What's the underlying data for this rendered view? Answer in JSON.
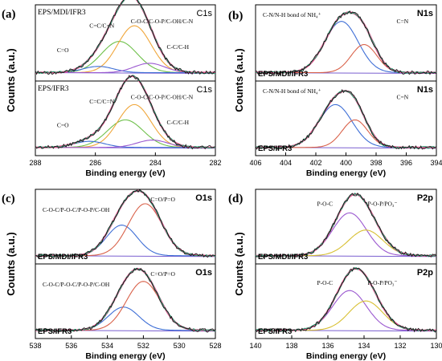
{
  "figure": {
    "colors": {
      "envelope": "#e0508a",
      "raw": "#111111",
      "fit": "#1f9e6e",
      "baseline": "#7a5fd0",
      "blue": "#3f6fd6",
      "red": "#d9624a",
      "green": "#6ec04a",
      "orange": "#f0a63a",
      "purple": "#9b59d0",
      "yellow": "#d8c033"
    }
  },
  "chart_data": [
    {
      "id": "a",
      "type": "line",
      "panel_label": "(a)",
      "xlabel": "Binding energy (eV)",
      "ylabel": "Counts (a.u.)",
      "xlim": [
        288,
        282
      ],
      "xticks": [
        288,
        286,
        284,
        282
      ],
      "element": "C1s",
      "subplots": [
        {
          "sample": "EPS/MDI/IFR3",
          "annotations": [
            "C=C/C=N",
            "C-O-C/C-O-P/C-OH/C-N",
            "C=O",
            "C-C/C-H"
          ],
          "components": [
            {
              "label": "C=C/C=N",
              "center": 285.2,
              "fwhm": 1.4,
              "height": 0.5,
              "color_key": "green"
            },
            {
              "label": "C-O-C/C-O-P/C-OH/C-N",
              "center": 284.7,
              "fwhm": 1.3,
              "height": 0.75,
              "color_key": "orange"
            },
            {
              "label": "C=O",
              "center": 285.9,
              "fwhm": 1.2,
              "height": 0.1,
              "color_key": "blue"
            },
            {
              "label": "C-C/C-H",
              "center": 284.2,
              "fwhm": 1.2,
              "height": 0.15,
              "color_key": "purple"
            }
          ]
        },
        {
          "sample": "EPS/IFR3",
          "annotations": [
            "C=C/C=N",
            "C-O-C/C-O-P/C-OH/C-N",
            "C=O",
            "C-C/C-H"
          ],
          "components": [
            {
              "label": "C=C/C=N",
              "center": 285.0,
              "fwhm": 1.4,
              "height": 0.45,
              "color_key": "green"
            },
            {
              "label": "C-O-C/C-O-P/C-OH/C-N",
              "center": 284.7,
              "fwhm": 1.3,
              "height": 0.7,
              "color_key": "orange"
            },
            {
              "label": "C=O",
              "center": 286.2,
              "fwhm": 1.2,
              "height": 0.1,
              "color_key": "blue"
            },
            {
              "label": "C-C/C-H",
              "center": 284.1,
              "fwhm": 1.2,
              "height": 0.12,
              "color_key": "purple"
            }
          ]
        }
      ]
    },
    {
      "id": "b",
      "type": "line",
      "panel_label": "(b)",
      "xlabel": "Binding energy (eV)",
      "ylabel": "Counts (a.u.)",
      "xlim": [
        406,
        394
      ],
      "xticks": [
        406,
        404,
        402,
        400,
        398,
        396,
        394
      ],
      "element": "N1s",
      "subplots": [
        {
          "sample": "EPS/MDI/IFR3",
          "annotations": [
            "C-N/N-H bond of NH₄⁺",
            "C=N"
          ],
          "components": [
            {
              "label": "C-N/N-H bond of NH₄⁺",
              "center": 400.3,
              "fwhm": 2.6,
              "height": 0.82,
              "color_key": "blue"
            },
            {
              "label": "C=N",
              "center": 398.8,
              "fwhm": 2.0,
              "height": 0.45,
              "color_key": "red"
            }
          ]
        },
        {
          "sample": "EPS/IFR3",
          "annotations": [
            "C-N/N-H bond of NH₄⁺",
            "C=N"
          ],
          "components": [
            {
              "label": "C-N/N-H bond of NH₄⁺",
              "center": 400.7,
              "fwhm": 2.6,
              "height": 0.7,
              "color_key": "blue"
            },
            {
              "label": "C=N",
              "center": 399.4,
              "fwhm": 2.0,
              "height": 0.45,
              "color_key": "red"
            }
          ]
        }
      ]
    },
    {
      "id": "c",
      "type": "line",
      "panel_label": "(c)",
      "xlabel": "Binding energy (eV)",
      "ylabel": "Counts (a.u.)",
      "xlim": [
        538,
        528
      ],
      "xticks": [
        538,
        536,
        534,
        532,
        530,
        528
      ],
      "element": "O1s",
      "subplots": [
        {
          "sample": "EPS/MDI/IFR3",
          "annotations": [
            "C-O-C/P-O-C/P-O-P/C-OH",
            "C=O/P=O"
          ],
          "components": [
            {
              "label": "C-O-C/P-O-C/P-O-P/C-OH",
              "center": 533.2,
              "fwhm": 2.0,
              "height": 0.5,
              "color_key": "blue"
            },
            {
              "label": "C=O/P=O",
              "center": 531.9,
              "fwhm": 2.2,
              "height": 0.85,
              "color_key": "red"
            }
          ]
        },
        {
          "sample": "EPS/IFR3",
          "annotations": [
            "C-O-C/P-O-C/P-O-P/C-OH",
            "C=O/P=O"
          ],
          "components": [
            {
              "label": "C-O-C/P-O-C/P-O-P/C-OH",
              "center": 533.1,
              "fwhm": 2.0,
              "height": 0.38,
              "color_key": "blue"
            },
            {
              "label": "C=O/P=O",
              "center": 532.0,
              "fwhm": 2.2,
              "height": 0.8,
              "color_key": "red"
            }
          ]
        }
      ]
    },
    {
      "id": "d",
      "type": "line",
      "panel_label": "(d)",
      "xlabel": "Binding energy (eV)",
      "ylabel": "Counts (a.u.)",
      "xlim": [
        140,
        130
      ],
      "xticks": [
        140,
        138,
        136,
        134,
        132,
        130
      ],
      "element": "P2p",
      "subplots": [
        {
          "sample": "EPS/MDI/IFR3",
          "annotations": [
            "P-O-C",
            "P-O-P/PO₃⁻"
          ],
          "components": [
            {
              "label": "P-O-C",
              "center": 134.8,
              "fwhm": 2.2,
              "height": 0.7,
              "color_key": "purple"
            },
            {
              "label": "P-O-P/PO₃⁻",
              "center": 133.9,
              "fwhm": 2.2,
              "height": 0.42,
              "color_key": "yellow"
            }
          ]
        },
        {
          "sample": "EPS/IFR3",
          "annotations": [
            "P-O-C",
            "P-O-P/PO₃⁻"
          ],
          "components": [
            {
              "label": "P-O-C",
              "center": 134.8,
              "fwhm": 2.2,
              "height": 0.65,
              "color_key": "purple"
            },
            {
              "label": "P-O-P/PO₃⁻",
              "center": 133.9,
              "fwhm": 2.2,
              "height": 0.48,
              "color_key": "yellow"
            }
          ]
        }
      ]
    }
  ]
}
